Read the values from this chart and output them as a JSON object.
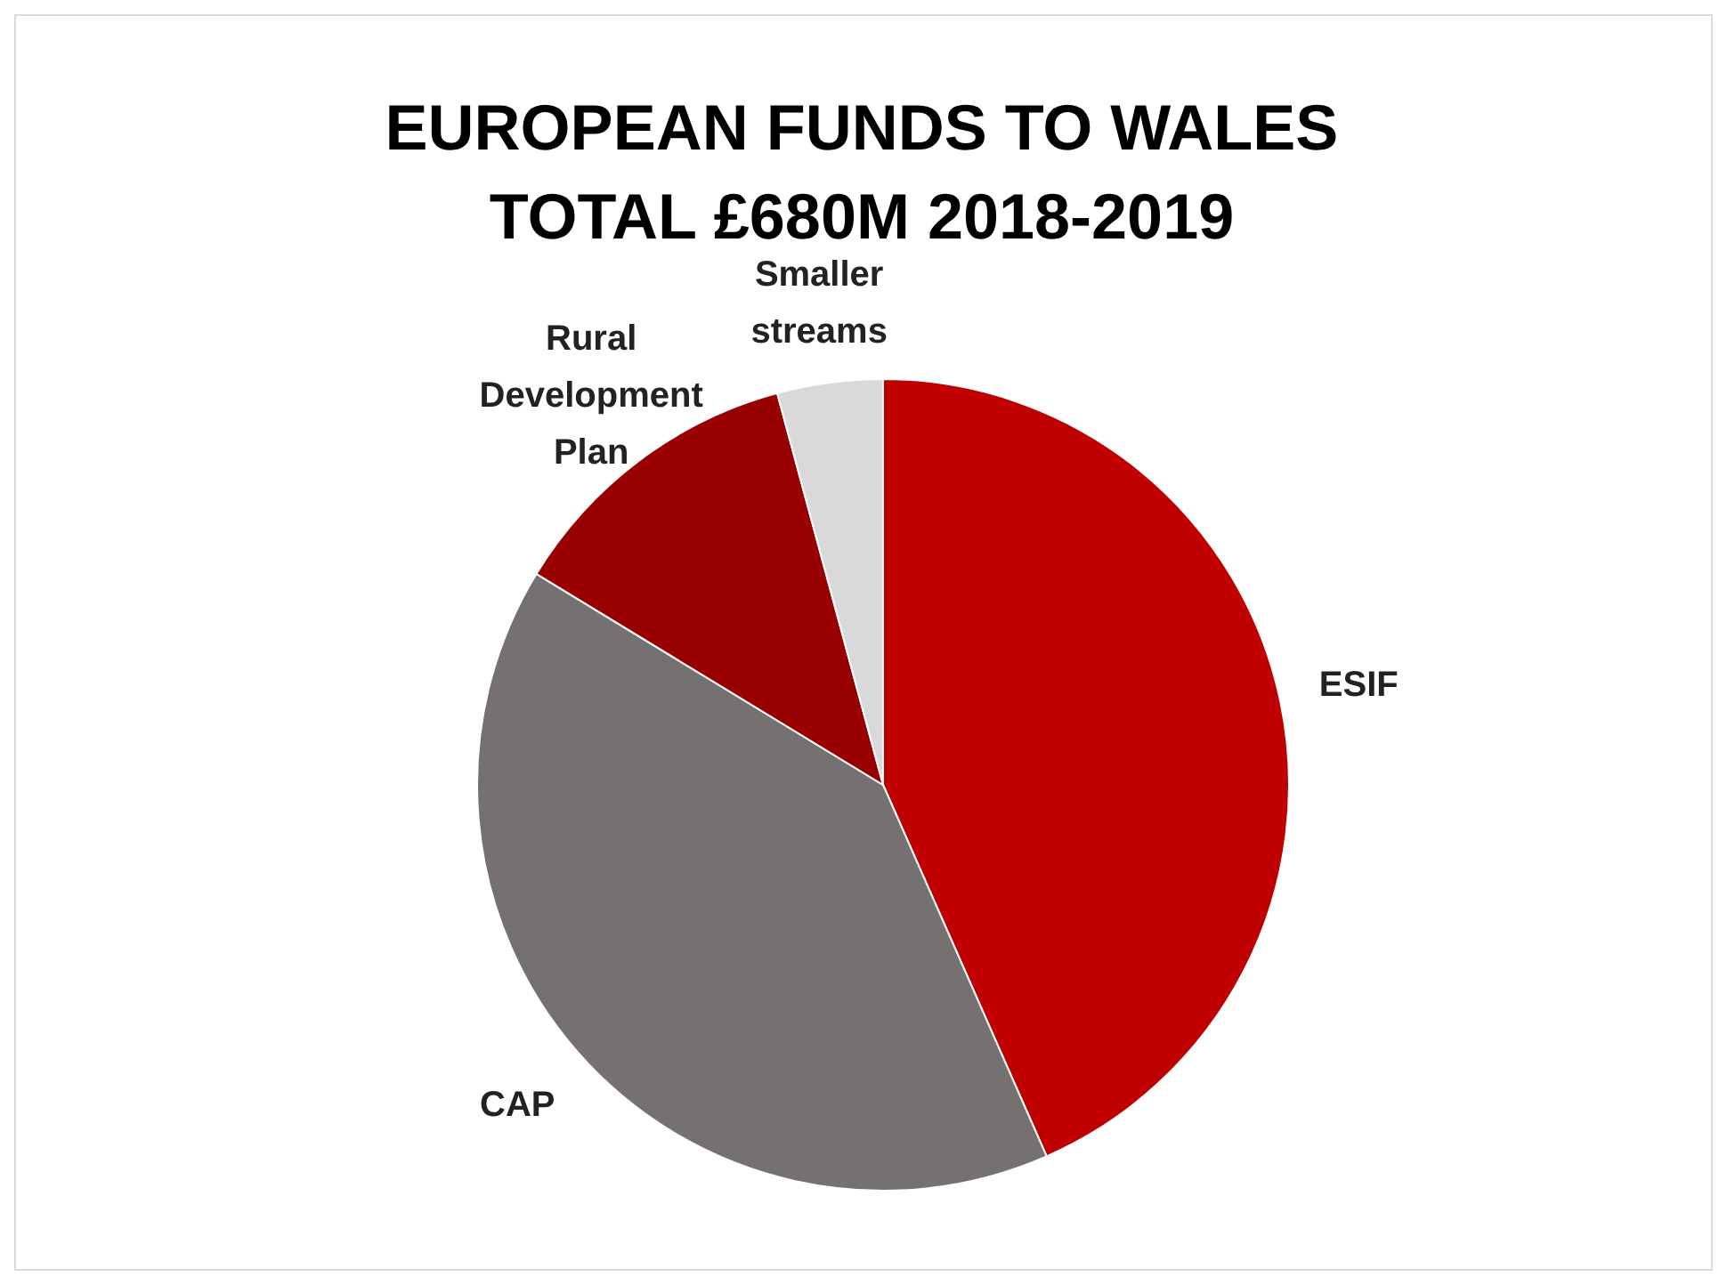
{
  "chart_data": {
    "type": "pie",
    "title": "EUROPEAN FUNDS TO WALES TOTAL £680M 2018-2019",
    "categories": [
      "ESIF",
      "CAP",
      "Rural Development Plan",
      "Smaller streams"
    ],
    "values": [
      43.4,
      40.3,
      12.1,
      4.2
    ],
    "colors": [
      "#c00000",
      "#767171",
      "#990000",
      "#d9d9d9"
    ],
    "legend": false
  }
}
